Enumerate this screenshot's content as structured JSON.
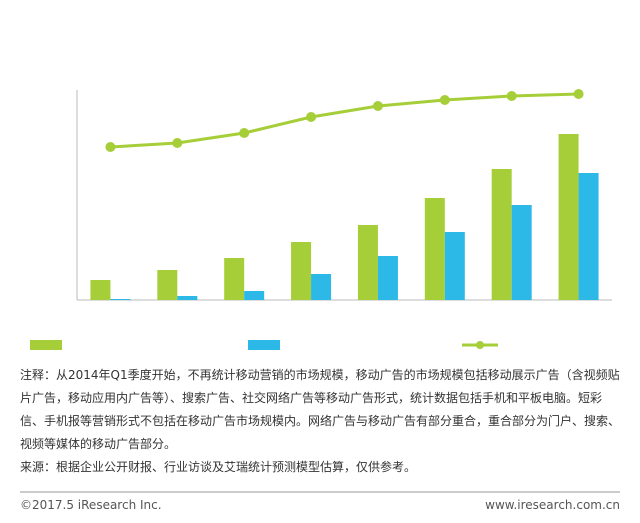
{
  "chart_data": {
    "type": "bar",
    "categories": [
      null,
      null,
      null,
      null,
      null,
      null,
      null,
      null
    ],
    "series": [
      {
        "color": "#a6ce39",
        "values": [
          20,
          30,
          42,
          58,
          75,
          102,
          131,
          166
        ]
      },
      {
        "color": "#2cb9e8",
        "values": [
          1,
          4,
          9,
          26,
          44,
          68,
          95,
          127
        ]
      },
      {
        "type": "line",
        "color": "#a6ce39",
        "values": [
          153,
          157,
          167,
          183,
          194,
          200,
          204,
          206
        ]
      }
    ],
    "ylim": [
      0,
      210
    ]
  },
  "notes": [
    "注释：从2014年Q1季度开始，不再统计移动营销的市场规模，移动广告的市场规模包括移动展示广告（含视频贴片广告，移动应用内广告等）、搜索广告、社交网络广告等移动广告形式，统计数据包括手机和平板电脑。短彩信、手机报等营销形式不包括在移动广告市场规模内。网络广告与移动广告有部分重合，重合部分为门户、搜索、视频等媒体的移动广告部分。",
    "来源：根据企业公开财报、行业访谈及艾瑞统计预测模型估算，仅供参考。"
  ],
  "footer": {
    "copyright": "©2017.5 iResearch Inc.",
    "website": "www.iresearch.com.cn"
  }
}
